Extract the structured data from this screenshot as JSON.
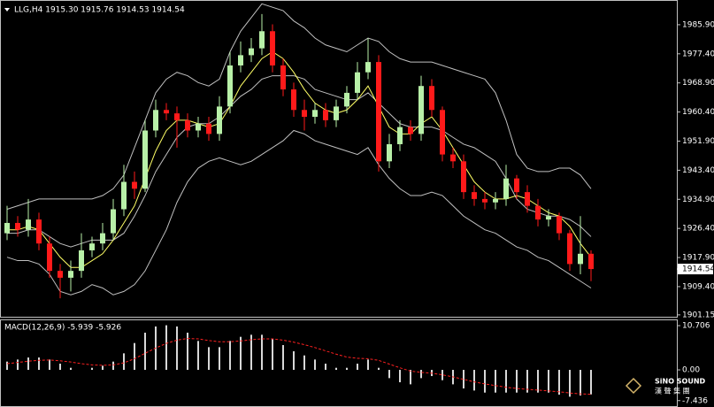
{
  "header": "LLG,H4  1915.30 1915.76 1914.53 1914.54",
  "watermark": {
    "brand": "SiNO SOUND",
    "subtitle": "漢 聲 集 團"
  },
  "chart_data": [
    {
      "type": "candlestick",
      "up_color": "#b8f0a8",
      "down_color": "#ff1a1a",
      "ylim": [
        1900.6,
        1992.6
      ],
      "yticks": [
        {
          "value": 1985.9,
          "label": "1985.90"
        },
        {
          "value": 1977.4,
          "label": "1977.40"
        },
        {
          "value": 1968.9,
          "label": "1968.90"
        },
        {
          "value": 1960.4,
          "label": "1960.40"
        },
        {
          "value": 1951.9,
          "label": "1951.90"
        },
        {
          "value": 1943.4,
          "label": "1943.40"
        },
        {
          "value": 1934.9,
          "label": "1934.90"
        },
        {
          "value": 1926.4,
          "label": "1926.40"
        },
        {
          "value": 1917.9,
          "label": "1917.90"
        },
        {
          "value": 1909.4,
          "label": "1909.40"
        },
        {
          "value": 1901.15,
          "label": "1901.15"
        }
      ],
      "open": [
        1925,
        1928,
        1926,
        1929,
        1922,
        1914,
        1912,
        1914,
        1920,
        1922,
        1925,
        1932,
        1940,
        1938,
        1955,
        1961,
        1960,
        1958,
        1955,
        1957,
        1954,
        1962,
        1974,
        1977,
        1979,
        1984,
        1974,
        1967,
        1961,
        1959,
        1961,
        1958,
        1962,
        1966,
        1972,
        1975,
        1946,
        1951,
        1956,
        1954,
        1968,
        1961,
        1948,
        1946,
        1937,
        1935,
        1934,
        1935,
        1941,
        1937,
        1933,
        1929,
        1930,
        1925,
        1916,
        1919
      ],
      "high": [
        1933,
        1930,
        1935,
        1931,
        1924,
        1916,
        1917,
        1925,
        1924,
        1928,
        1935,
        1945,
        1943,
        1958,
        1964,
        1963,
        1962,
        1960,
        1959,
        1959,
        1965,
        1978,
        1981,
        1982,
        1989,
        1986,
        1976,
        1969,
        1964,
        1963,
        1963,
        1964,
        1968,
        1975,
        1982,
        1977,
        1954,
        1958,
        1958,
        1971,
        1970,
        1962,
        1950,
        1948,
        1939,
        1937,
        1937,
        1945,
        1942,
        1939,
        1935,
        1932,
        1931,
        1926,
        1930,
        1920
      ],
      "low": [
        1923,
        1924,
        1924,
        1920,
        1912,
        1906,
        1908,
        1912,
        1918,
        1920,
        1923,
        1930,
        1935,
        1937,
        1953,
        1958,
        1950,
        1953,
        1953,
        1952,
        1952,
        1960,
        1972,
        1975,
        1977,
        1972,
        1965,
        1959,
        1955,
        1957,
        1956,
        1956,
        1960,
        1964,
        1970,
        1943,
        1944,
        1949,
        1952,
        1952,
        1959,
        1946,
        1944,
        1935,
        1933,
        1932,
        1932,
        1933,
        1935,
        1931,
        1927,
        1927,
        1923,
        1914,
        1913,
        1911
      ],
      "close": [
        1928,
        1926,
        1929,
        1922,
        1914,
        1912,
        1914,
        1920,
        1922,
        1925,
        1932,
        1940,
        1938,
        1955,
        1961,
        1960,
        1958,
        1955,
        1957,
        1954,
        1962,
        1974,
        1977,
        1979,
        1984,
        1974,
        1967,
        1961,
        1959,
        1961,
        1958,
        1962,
        1966,
        1972,
        1975,
        1946,
        1951,
        1956,
        1954,
        1968,
        1961,
        1948,
        1946,
        1937,
        1935,
        1934,
        1935,
        1941,
        1937,
        1933,
        1929,
        1930,
        1925,
        1916,
        1919,
        1914.54
      ],
      "series": [
        {
          "name": "Upper band",
          "color": "#c0c0c0",
          "values": [
            1932,
            1933,
            1934,
            1935,
            1935,
            1935,
            1935,
            1935,
            1935,
            1936,
            1938,
            1942,
            1950,
            1958,
            1966,
            1970,
            1972,
            1971,
            1969,
            1968,
            1970,
            1978,
            1984,
            1988,
            1992,
            1991,
            1990,
            1987,
            1985,
            1982,
            1980,
            1979,
            1978,
            1980,
            1982,
            1981,
            1978,
            1976,
            1975,
            1975,
            1975,
            1974,
            1973,
            1972,
            1971,
            1970,
            1966,
            1958,
            1948,
            1944,
            1943,
            1943,
            1944,
            1944,
            1942,
            1938
          ]
        },
        {
          "name": "Middle band",
          "color": "#c0c0c0",
          "values": [
            1925,
            1925,
            1926,
            1926,
            1924,
            1922,
            1921,
            1922,
            1923,
            1923,
            1923,
            1925,
            1930,
            1936,
            1943,
            1948,
            1953,
            1956,
            1957,
            1957,
            1959,
            1962,
            1965,
            1967,
            1970,
            1971,
            1971,
            1971,
            1970,
            1967,
            1966,
            1965,
            1964,
            1964,
            1966,
            1963,
            1960,
            1957,
            1956,
            1956,
            1956,
            1955,
            1953,
            1951,
            1950,
            1948,
            1946,
            1941,
            1935,
            1932,
            1931,
            1930,
            1930,
            1929,
            1927,
            1924
          ]
        },
        {
          "name": "Lower band",
          "color": "#c0c0c0",
          "values": [
            1918,
            1917,
            1917,
            1916,
            1913,
            1908,
            1907,
            1908,
            1910,
            1909,
            1907,
            1908,
            1910,
            1914,
            1920,
            1926,
            1934,
            1940,
            1944,
            1946,
            1947,
            1946,
            1945,
            1946,
            1948,
            1950,
            1952,
            1955,
            1954,
            1952,
            1951,
            1950,
            1949,
            1948,
            1950,
            1945,
            1941,
            1938,
            1936,
            1936,
            1937,
            1936,
            1933,
            1930,
            1928,
            1926,
            1925,
            1923,
            1921,
            1920,
            1918,
            1917,
            1915,
            1913,
            1911,
            1909
          ]
        },
        {
          "name": "MA",
          "color": "#ffff66",
          "values": [
            1926,
            1926,
            1927,
            1926,
            1922,
            1918,
            1915,
            1915,
            1917,
            1919,
            1923,
            1928,
            1933,
            1941,
            1949,
            1955,
            1958,
            1958,
            1957,
            1956,
            1957,
            1962,
            1968,
            1972,
            1976,
            1978,
            1976,
            1972,
            1967,
            1963,
            1961,
            1960,
            1961,
            1964,
            1968,
            1962,
            1956,
            1954,
            1954,
            1957,
            1959,
            1955,
            1950,
            1945,
            1940,
            1937,
            1935,
            1935,
            1936,
            1935,
            1933,
            1931,
            1930,
            1927,
            1922,
            1918
          ]
        }
      ]
    },
    {
      "type": "macd",
      "title": "MACD(12,26,9) -5.939 -5.926",
      "ylim": [
        -8.13,
        12.0
      ],
      "yticks": [
        10.706,
        {
          "value": 0,
          "label": "0.00"
        },
        -7.436
      ],
      "histogram_color": "#d8d8d8",
      "signal_color": "#ff2020",
      "values": [
        2,
        2.5,
        3,
        3,
        2.5,
        1.5,
        0.5,
        0,
        0.5,
        1,
        2,
        4,
        6.5,
        9,
        10.5,
        10.8,
        10.5,
        9,
        7,
        5.5,
        5.5,
        7,
        8,
        8.5,
        8.5,
        7.5,
        6,
        4.5,
        3.5,
        2.5,
        1.5,
        0.5,
        0.5,
        1.5,
        2.5,
        0.5,
        -2,
        -3,
        -3.5,
        -2,
        -1.5,
        -2.5,
        -3.5,
        -4.5,
        -5,
        -5.5,
        -5.5,
        -5.5,
        -5.5,
        -5.5,
        -5.5,
        -5.5,
        -6,
        -6.5,
        -6.2,
        -5.939
      ],
      "signal": [
        1.5,
        1.8,
        2.1,
        2.3,
        2.4,
        2.2,
        1.9,
        1.5,
        1.2,
        1.1,
        1.2,
        1.7,
        2.7,
        4,
        5.3,
        6.4,
        7.2,
        7.6,
        7.5,
        7.1,
        6.8,
        6.8,
        7,
        7.3,
        7.5,
        7.5,
        7.2,
        6.7,
        6.1,
        5.4,
        4.6,
        3.8,
        3.1,
        2.8,
        2.7,
        2.3,
        1.4,
        0.5,
        -0.3,
        -0.6,
        -0.8,
        -1.2,
        -1.7,
        -2.3,
        -2.9,
        -3.4,
        -3.8,
        -4.2,
        -4.5,
        -4.7,
        -4.9,
        -5.1,
        -5.3,
        -5.6,
        -5.8,
        -5.926
      ]
    }
  ]
}
